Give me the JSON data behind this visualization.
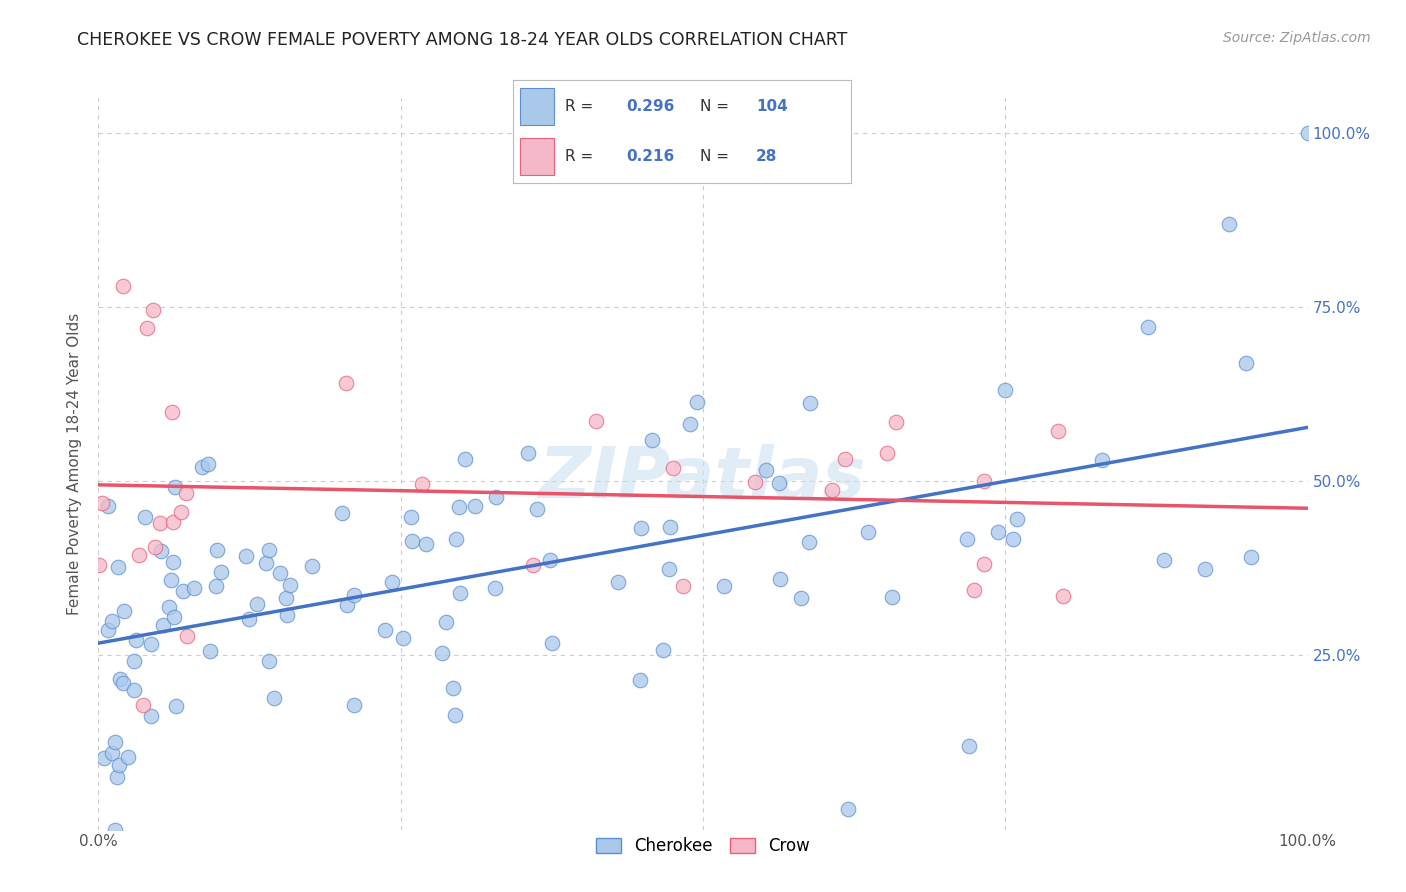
{
  "title": "CHEROKEE VS CROW FEMALE POVERTY AMONG 18-24 YEAR OLDS CORRELATION CHART",
  "source": "Source: ZipAtlas.com",
  "ylabel": "Female Poverty Among 18-24 Year Olds",
  "background_color": "#ffffff",
  "cherokee_fill": "#aac8ea",
  "cherokee_edge": "#5b8fd4",
  "crow_fill": "#f5b8c8",
  "crow_edge": "#e8607a",
  "cherokee_line_color": "#4472c4",
  "crow_line_color": "#e8556a",
  "grid_color": "#cccccc",
  "legend_cherokee_R": "0.296",
  "legend_cherokee_N": "104",
  "legend_crow_R": "0.216",
  "legend_crow_N": "28",
  "watermark": "ZIPatlas",
  "right_tick_color": "#4472c4",
  "title_color": "#222222",
  "source_color": "#999999",
  "ylabel_color": "#555555"
}
